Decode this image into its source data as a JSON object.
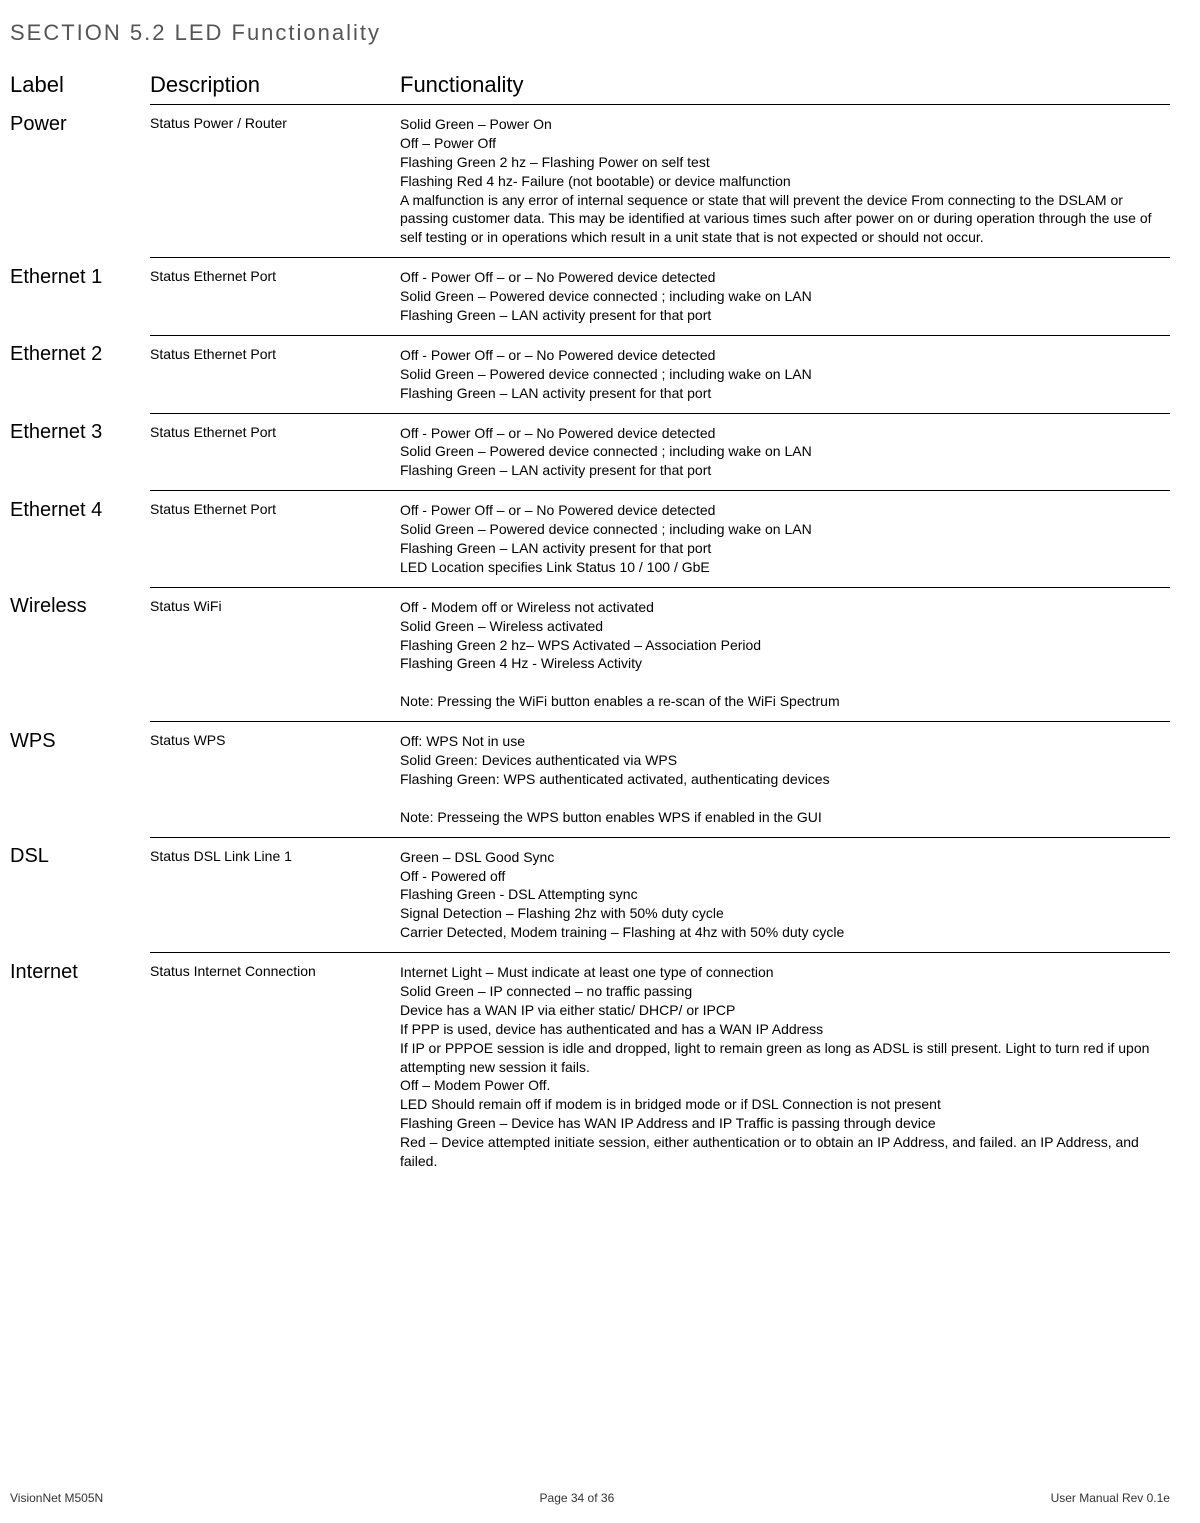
{
  "section_title": "SECTION  5.2  LED  Functionality",
  "headers": {
    "label": "Label",
    "description": "Description",
    "functionality": "Functionality"
  },
  "rows": [
    {
      "label": "Power",
      "description": "Status Power / Router",
      "functionality": "Solid Green – Power On\nOff – Power Off\nFlashing Green 2 hz – Flashing Power on self test\nFlashing Red 4 hz- Failure (not bootable) or device malfunction\nA malfunction is any error of internal sequence or state that will prevent the device From connecting to the DSLAM or passing customer data. This may be identified at various times such after power on or during operation through the use of self testing or in operations which result in a unit state that is not expected or should not occur."
    },
    {
      "label": "Ethernet 1",
      "description": "Status Ethernet Port",
      "functionality": "Off  - Power Off – or – No Powered device detected\nSolid Green – Powered device connected ; including wake on LAN\nFlashing Green – LAN activity present for that port"
    },
    {
      "label": "Ethernet 2",
      "description": "Status Ethernet Port",
      "functionality": "Off  - Power Off – or – No Powered device detected\nSolid Green – Powered device connected ; including wake on LAN\nFlashing Green – LAN activity present for that port"
    },
    {
      "label": "Ethernet 3",
      "description": "Status Ethernet Port",
      "functionality": "Off  - Power Off – or – No Powered device detected\nSolid Green – Powered device connected ; including wake on LAN\nFlashing Green – LAN activity present for that port"
    },
    {
      "label": "Ethernet 4",
      "description": "Status Ethernet Port",
      "functionality": "Off  - Power Off – or – No Powered device detected\nSolid Green – Powered device connected ; including wake on LAN\nFlashing Green – LAN activity present for that port\nLED Location specifies Link Status 10 / 100 / GbE"
    },
    {
      "label": "Wireless",
      "description": "Status WiFi",
      "functionality": "Off  - Modem off or Wireless not activated\nSolid Green – Wireless activated\nFlashing Green 2 hz– WPS Activated – Association Period\nFlashing Green 4 Hz - Wireless Activity\n\nNote: Pressing the WiFi button enables a re-scan of the WiFi Spectrum"
    },
    {
      "label": "WPS",
      "description": "Status WPS",
      "functionality": "Off:                      WPS Not in use\nSolid Green:       Devices authenticated via WPS\nFlashing Green: WPS authenticated activated, authenticating devices\n\nNote: Presseing the WPS button enables WPS if enabled in the GUI"
    },
    {
      "label": "DSL",
      "description": "Status DSL Link Line 1",
      "functionality": "Green – DSL Good Sync\nOff          - Powered off\nFlashing Green -  DSL Attempting sync\nSignal Detection – Flashing 2hz with 50% duty cycle\nCarrier Detected, Modem training – Flashing at 4hz with 50% duty cycle"
    },
    {
      "label": "Internet",
      "description": "Status Internet Connection",
      "functionality": "Internet Light – Must indicate at least one type of connection\nSolid Green – IP connected – no traffic passing\nDevice has a WAN IP via either static/ DHCP/ or IPCP\nIf PPP is used, device has authenticated and has a WAN IP Address\nIf IP or PPPOE session is idle and dropped, light to remain green as long as ADSL is still present. Light to turn red if upon attempting new session it fails.\nOff – Modem Power Off.\nLED Should remain off if modem is in bridged mode or if DSL Connection is not present\nFlashing Green – Device has WAN IP Address and IP Traffic is passing through device\nRed – Device attempted initiate session, either authentication or to obtain an IP Address, and failed. an IP Address, and failed."
    }
  ],
  "footer": {
    "left": "VisionNet   M505N",
    "center": "Page 34 of 36",
    "right": "User Manual Rev 0.1e"
  }
}
